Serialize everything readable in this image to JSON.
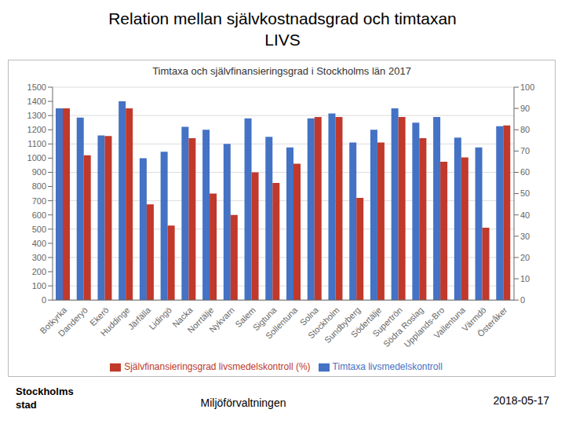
{
  "chart_data": {
    "type": "bar",
    "title": "Relation mellan självkostnadsgrad och timtaxan",
    "subtitle": "LIVS",
    "annotations": [
      "Timtaxa och självfinansieringsgrad i Stockholms län 2017",
      "Stockholms",
      "stad",
      "Miljöförvaltningen",
      "2018-05-17"
    ],
    "categories": [
      "Botkyrka",
      "Danderyö",
      "Ekerö",
      "Huddinge",
      "Järfälla",
      "Lidingö",
      "Nacka",
      "Norrtälje",
      "Nykvarn",
      "Salem",
      "Sigtuna",
      "Sollentuna",
      "Solna",
      "Stockholm",
      "Sundbyberg",
      "Södertälje",
      "Supertrön",
      "Södra Roslag",
      "Upplands-Bro",
      "Vallentuna",
      "Värmdö",
      "Österåker"
    ],
    "series": [
      {
        "name": "Timtaxa livsmedelskontroll",
        "type": "bar",
        "color": "#4472C4",
        "values": [
          1350,
          1285,
          1160,
          1400,
          1000,
          1045,
          1220,
          1200,
          1100,
          1280,
          1150,
          1075,
          1280,
          1315,
          1110,
          1200,
          1350,
          1250,
          1290,
          1145,
          1075,
          1225
        ]
      },
      {
        "name": "Självfinansieringsgrad livsmedelskontroll (%)",
        "type": "bar",
        "color": "#C0392B",
        "axis": "y2",
        "values": [
          90,
          68,
          77,
          90,
          45,
          35,
          76,
          50,
          40,
          60,
          55,
          64,
          86,
          86,
          48,
          74,
          86,
          76,
          65,
          67,
          34,
          82
        ]
      }
    ],
    "ylim": [
      0,
      1500
    ],
    "yticks": [
      0,
      100,
      200,
      300,
      400,
      500,
      600,
      700,
      800,
      900,
      1000,
      1100,
      1200,
      1300,
      1400,
      1500
    ],
    "y2lim": [
      0,
      100
    ],
    "y2ticks": [
      0,
      10,
      20,
      30,
      40,
      50,
      60,
      70,
      80,
      90,
      100
    ],
    "grid": true,
    "legend": "bottom"
  }
}
